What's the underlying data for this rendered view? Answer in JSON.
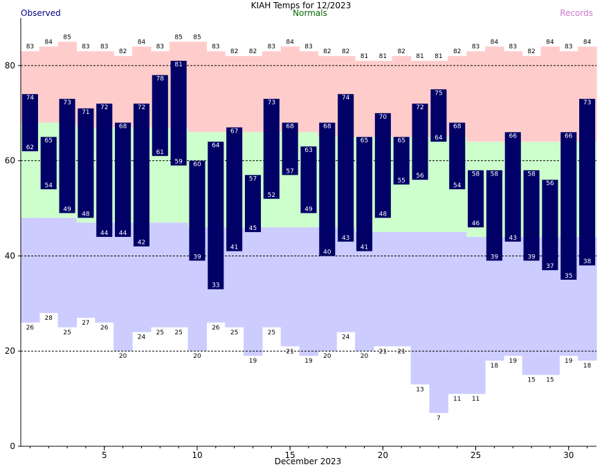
{
  "chart_data": {
    "type": "bar",
    "title": "KIAH Temps for 12/2023",
    "legend": [
      "Observed",
      "Normals",
      "Records"
    ],
    "xlabel": "December 2023",
    "xlim": [
      0.5,
      31.5
    ],
    "ylim": [
      0,
      90
    ],
    "y_ticks": [
      0,
      20,
      40,
      60,
      80
    ],
    "x_ticks": [
      5,
      10,
      15,
      20,
      25,
      30
    ],
    "days": [
      1,
      2,
      3,
      4,
      5,
      6,
      7,
      8,
      9,
      10,
      11,
      12,
      13,
      14,
      15,
      16,
      17,
      18,
      19,
      20,
      21,
      22,
      23,
      24,
      25,
      26,
      27,
      28,
      29,
      30,
      31
    ],
    "observed_high": [
      74,
      65,
      73,
      71,
      72,
      68,
      72,
      78,
      81,
      60,
      64,
      67,
      57,
      73,
      68,
      63,
      68,
      74,
      65,
      70,
      65,
      72,
      75,
      68,
      58,
      58,
      66,
      58,
      56,
      66,
      73
    ],
    "observed_low": [
      62,
      54,
      49,
      48,
      44,
      44,
      42,
      61,
      59,
      39,
      33,
      41,
      45,
      52,
      57,
      49,
      40,
      43,
      41,
      48,
      55,
      56,
      64,
      54,
      46,
      39,
      43,
      39,
      37,
      35,
      38
    ],
    "normal_high": [
      68,
      68,
      68,
      67,
      67,
      67,
      67,
      67,
      67,
      66,
      66,
      66,
      66,
      66,
      66,
      66,
      65,
      65,
      65,
      65,
      65,
      65,
      65,
      65,
      64,
      64,
      64,
      64,
      64,
      64,
      64
    ],
    "normal_low": [
      48,
      48,
      48,
      47,
      47,
      47,
      47,
      47,
      47,
      46,
      46,
      46,
      46,
      46,
      46,
      46,
      46,
      46,
      45,
      45,
      45,
      45,
      45,
      45,
      44,
      44,
      44,
      44,
      44,
      44,
      44
    ],
    "record_high": [
      83,
      84,
      85,
      83,
      83,
      82,
      84,
      83,
      85,
      85,
      83,
      82,
      82,
      83,
      84,
      83,
      82,
      82,
      81,
      81,
      82,
      81,
      81,
      82,
      83,
      84,
      83,
      82,
      84,
      83,
      84
    ],
    "record_low": [
      26,
      28,
      25,
      27,
      26,
      20,
      24,
      25,
      25,
      20,
      26,
      25,
      19,
      25,
      21,
      19,
      20,
      24,
      20,
      21,
      21,
      13,
      7,
      11,
      11,
      18,
      19,
      15,
      15,
      19,
      18
    ],
    "grid": "dashed horizontal lines at 20, 40, 60, 80",
    "colors": {
      "observed": "#000066",
      "observed_label": "#ffffff",
      "record_high_band": "#ffcccc",
      "normal_band": "#ccffcc",
      "record_low_band": "#ccccff",
      "observed_legend": "#000080",
      "normals_legend": "#006600",
      "records_legend": "#cc77cc"
    }
  }
}
